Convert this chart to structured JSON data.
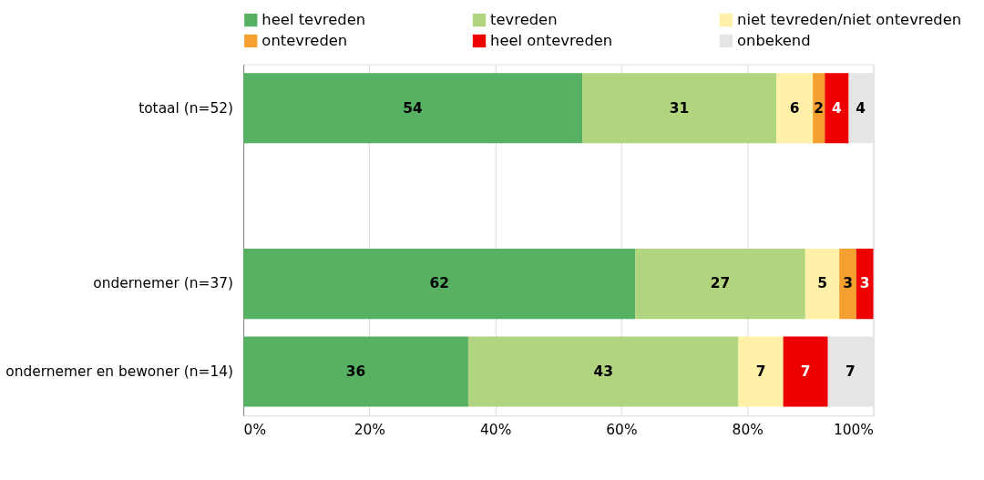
{
  "chart_data": {
    "type": "bar",
    "orientation": "horizontal",
    "stacked": true,
    "categories": [
      "totaal (n=52)",
      null,
      "ondernemer (n=37)",
      "ondernemer en bewoner (n=14)"
    ],
    "series": [
      {
        "name": "heel tevreden",
        "color": "#57b162",
        "values": [
          53.8,
          null,
          62.2,
          35.7
        ],
        "value_labels": [
          "54",
          null,
          "62",
          "36"
        ]
      },
      {
        "name": "tevreden",
        "color": "#b1d47e",
        "values": [
          30.8,
          null,
          27.0,
          42.9
        ],
        "value_labels": [
          "31",
          null,
          "27",
          "43"
        ]
      },
      {
        "name": "niet tevreden/niet ontevreden",
        "color": "#fff2a8",
        "values": [
          5.8,
          null,
          5.4,
          7.1
        ],
        "value_labels": [
          "6",
          null,
          "5",
          "7"
        ]
      },
      {
        "name": "ontevreden",
        "color": "#f4a030",
        "values": [
          1.9,
          null,
          2.7,
          null
        ],
        "value_labels": [
          "2",
          null,
          "3",
          null
        ]
      },
      {
        "name": "heel ontevreden",
        "color": "#ee0000",
        "values": [
          3.8,
          null,
          2.7,
          7.1
        ],
        "value_labels": [
          "4",
          null,
          "3",
          "7"
        ]
      },
      {
        "name": "onbekend",
        "color": "#e5e5e5",
        "values": [
          3.8,
          null,
          null,
          7.1
        ],
        "value_labels": [
          "4",
          null,
          null,
          "7"
        ]
      }
    ],
    "xlim": [
      0,
      100
    ],
    "xticks": [
      {
        "value": 0,
        "label": "0%"
      },
      {
        "value": 20,
        "label": "20%"
      },
      {
        "value": 40,
        "label": "40%"
      },
      {
        "value": 60,
        "label": "60%"
      },
      {
        "value": 80,
        "label": "80%"
      },
      {
        "value": 100,
        "label": "100%"
      }
    ],
    "grid": "x",
    "legend": "top"
  }
}
